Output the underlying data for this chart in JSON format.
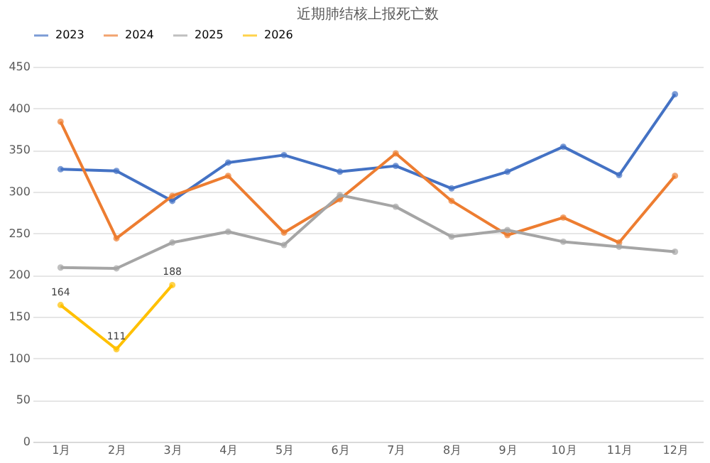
{
  "chart_data": {
    "type": "line",
    "title": "近期肺结核上报死亡数",
    "categories": [
      "1月",
      "2月",
      "3月",
      "4月",
      "5月",
      "6月",
      "7月",
      "8月",
      "9月",
      "10月",
      "11月",
      "12月"
    ],
    "series": [
      {
        "name": "2023",
        "color": "#4472c4",
        "values": [
          327,
          325,
          289,
          335,
          344,
          324,
          331,
          304,
          324,
          354,
          320,
          417
        ]
      },
      {
        "name": "2024",
        "color": "#ed7d31",
        "values": [
          384,
          244,
          295,
          319,
          251,
          291,
          346,
          289,
          248,
          269,
          239,
          319
        ]
      },
      {
        "name": "2025",
        "color": "#a5a5a5",
        "values": [
          209,
          208,
          239,
          252,
          236,
          296,
          282,
          246,
          254,
          240,
          234,
          228
        ]
      },
      {
        "name": "2026",
        "color": "#ffc000",
        "values": [
          164,
          111,
          188,
          null,
          null,
          null,
          null,
          null,
          null,
          null,
          null,
          null
        ],
        "value_labels": [
          "164",
          "111",
          "188",
          null,
          null,
          null,
          null,
          null,
          null,
          null,
          null,
          null
        ]
      }
    ],
    "ylim": [
      0,
      450
    ],
    "yticks": [
      0,
      50,
      100,
      150,
      200,
      250,
      300,
      350,
      400,
      450
    ],
    "grid": "y",
    "legend": "top",
    "marker": "circle",
    "line_style": "solid"
  }
}
